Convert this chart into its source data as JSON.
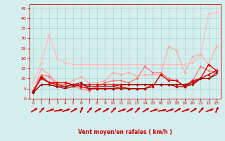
{
  "x": [
    0,
    1,
    2,
    3,
    4,
    5,
    6,
    7,
    8,
    9,
    10,
    11,
    12,
    13,
    14,
    15,
    16,
    17,
    18,
    19,
    20,
    21,
    22,
    23
  ],
  "series": [
    {
      "name": "line1_lightest",
      "color": "#ffbbbb",
      "lw": 0.9,
      "marker": "D",
      "markersize": 1.8,
      "y": [
        8,
        18,
        32,
        20,
        18,
        17,
        17,
        17,
        17,
        17,
        17,
        17,
        17,
        17,
        17,
        17,
        17,
        17,
        17,
        17,
        18,
        22,
        42,
        43
      ]
    },
    {
      "name": "line2_light",
      "color": "#ffaaaa",
      "lw": 0.9,
      "marker": "D",
      "markersize": 1.8,
      "y": [
        3,
        15,
        12,
        8,
        7,
        9,
        11,
        8,
        8,
        9,
        13,
        12,
        13,
        11,
        12,
        12,
        12,
        26,
        24,
        13,
        21,
        22,
        17,
        26
      ]
    },
    {
      "name": "line3_medium",
      "color": "#ff7777",
      "lw": 0.9,
      "marker": "D",
      "markersize": 1.8,
      "y": [
        4,
        12,
        11,
        7,
        7,
        6,
        5,
        4,
        6,
        8,
        9,
        9,
        8,
        10,
        16,
        13,
        13,
        10,
        9,
        6,
        9,
        16,
        14,
        13
      ]
    },
    {
      "name": "line4_dark",
      "color": "#dd0000",
      "lw": 1.0,
      "marker": "D",
      "markersize": 2.0,
      "y": [
        3,
        11,
        8,
        7,
        6,
        7,
        6,
        5,
        5,
        5,
        5,
        6,
        5,
        5,
        5,
        6,
        12,
        9,
        9,
        6,
        9,
        10,
        17,
        14
      ]
    },
    {
      "name": "line5_dark",
      "color": "#dd0000",
      "lw": 1.0,
      "marker": "D",
      "markersize": 2.0,
      "y": [
        4,
        10,
        8,
        8,
        8,
        7,
        7,
        7,
        7,
        7,
        7,
        7,
        7,
        7,
        7,
        7,
        7,
        7,
        7,
        7,
        8,
        10,
        12,
        14
      ]
    },
    {
      "name": "line6_darkest",
      "color": "#aa0000",
      "lw": 0.8,
      "marker": "D",
      "markersize": 1.8,
      "y": [
        3,
        7,
        7,
        6,
        6,
        7,
        8,
        5,
        5,
        5,
        5,
        5,
        5,
        5,
        5,
        7,
        7,
        7,
        6,
        6,
        7,
        10,
        10,
        13
      ]
    },
    {
      "name": "line7_darkest2",
      "color": "#880000",
      "lw": 0.8,
      "marker": null,
      "markersize": 0,
      "y": [
        3,
        7,
        7,
        6,
        5,
        6,
        7,
        6,
        6,
        6,
        6,
        7,
        7,
        7,
        7,
        7,
        7,
        7,
        7,
        7,
        7,
        10,
        10,
        12
      ]
    }
  ],
  "xlabel": "Vent moyen/en rafales ( km/h )",
  "xlim": [
    -0.5,
    23.5
  ],
  "ylim": [
    0,
    47
  ],
  "yticks": [
    0,
    5,
    10,
    15,
    20,
    25,
    30,
    35,
    40,
    45
  ],
  "xticks": [
    0,
    1,
    2,
    3,
    4,
    5,
    6,
    7,
    8,
    9,
    10,
    11,
    12,
    13,
    14,
    15,
    16,
    17,
    18,
    19,
    20,
    21,
    22,
    23
  ],
  "bg_color": "#d4eeee",
  "grid_color": "#aad4d4",
  "tick_color": "#cc0000",
  "label_color": "#cc0000",
  "arrow_angles": [
    45,
    30,
    60,
    75,
    60,
    45,
    15,
    30,
    45,
    45,
    30,
    60,
    45,
    30,
    45,
    60,
    75,
    60,
    45,
    60,
    45,
    30,
    60,
    15
  ]
}
